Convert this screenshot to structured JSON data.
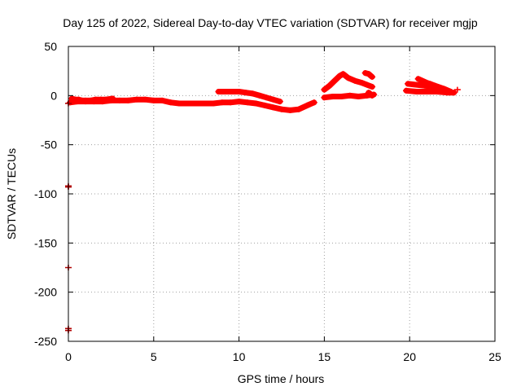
{
  "chart_data": {
    "type": "scatter",
    "title": "Day 125 of 2022, Sidereal Day-to-day VTEC variation (SDTVAR) for receiver mgjp",
    "xlabel": "GPS time / hours",
    "ylabel": "SDTVAR / TECUs",
    "xlim": [
      0,
      25
    ],
    "ylim": [
      -250,
      50
    ],
    "xticks": [
      0,
      5,
      10,
      15,
      20,
      25
    ],
    "yticks": [
      -250,
      -200,
      -150,
      -100,
      -50,
      0,
      50
    ],
    "grid": true,
    "series_color": "#ff0000",
    "outlier_color": "#b00000",
    "series": [
      {
        "name": "SDTVAR",
        "segments": [
          {
            "x": [
              0.1,
              0.5,
              1.0,
              1.5,
              2.0,
              2.5,
              3.0,
              3.5,
              4.0,
              4.5,
              5.0,
              5.5,
              6.0,
              6.5,
              7.0,
              7.5,
              8.0,
              8.5,
              9.0,
              9.5,
              10.0,
              10.5,
              11.0,
              11.5,
              12.0,
              12.5,
              13.0,
              13.5,
              14.0,
              14.4
            ],
            "y": [
              -7,
              -6,
              -6,
              -6,
              -6,
              -5,
              -5,
              -5,
              -4,
              -4,
              -5,
              -5,
              -7,
              -8,
              -8,
              -8,
              -8,
              -8,
              -7,
              -7,
              -6,
              -7,
              -8,
              -10,
              -12,
              -14,
              -15,
              -14,
              -10,
              -7
            ]
          },
          {
            "x": [
              8.8,
              9.2,
              9.6,
              10.0,
              10.4,
              10.8,
              11.2,
              11.6,
              12.0,
              12.4
            ],
            "y": [
              4,
              4,
              4,
              4,
              3,
              2,
              0,
              -2,
              -4,
              -6
            ]
          },
          {
            "x": [
              0.2,
              0.4,
              0.6,
              0.8,
              1.0,
              1.3,
              1.6,
              1.9,
              2.2,
              2.6
            ],
            "y": [
              -3,
              -4,
              -4,
              -5,
              -5,
              -5,
              -4,
              -4,
              -4,
              -3
            ]
          },
          {
            "x": [
              15.0,
              15.5,
              16.0,
              16.5,
              17.0,
              17.5,
              17.9
            ],
            "y": [
              -2,
              -1,
              -1,
              0,
              -1,
              0,
              1
            ]
          },
          {
            "x": [
              15.0,
              15.3,
              15.6,
              15.9,
              16.1,
              16.4,
              16.8,
              17.2,
              17.5,
              17.8
            ],
            "y": [
              6,
              10,
              15,
              20,
              22,
              18,
              15,
              13,
              11,
              9
            ]
          },
          {
            "x": [
              17.4,
              17.6,
              17.8
            ],
            "y": [
              23,
              22,
              19
            ]
          },
          {
            "x": [
              17.6,
              17.8
            ],
            "y": [
              3,
              0
            ]
          },
          {
            "x": [
              19.8,
              20.4,
              21.0,
              21.6,
              22.2,
              22.6
            ],
            "y": [
              5,
              4,
              4,
              4,
              3,
              3
            ]
          },
          {
            "x": [
              19.9,
              20.4,
              20.9,
              21.4,
              21.9,
              22.3
            ],
            "y": [
              12,
              11,
              10,
              9,
              7,
              4
            ]
          },
          {
            "x": [
              20.5,
              21.0,
              21.5,
              22.0,
              22.4
            ],
            "y": [
              17,
              13,
              10,
              7,
              4
            ]
          },
          {
            "x": [
              21.2,
              21.6,
              22.0,
              22.4
            ],
            "y": [
              12,
              9,
              6,
              4
            ]
          },
          {
            "x": [
              22.8
            ],
            "y": [
              6
            ]
          }
        ]
      },
      {
        "name": "outliers",
        "segments": [
          {
            "x": [
              0.0,
              0.0,
              0.0,
              0.0,
              0.0,
              0.0
            ],
            "y": [
              -8,
              -92,
              -93,
              -175,
              -237,
              -239
            ]
          }
        ]
      }
    ]
  }
}
